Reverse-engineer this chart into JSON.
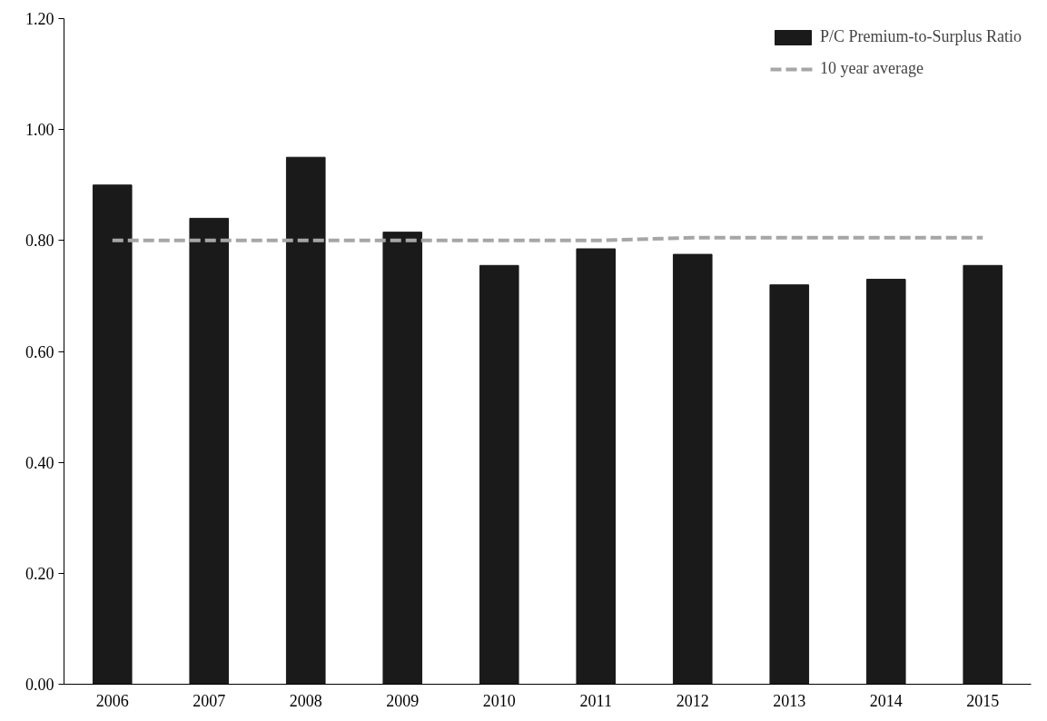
{
  "chart_data": {
    "type": "bar",
    "categories": [
      "2006",
      "2007",
      "2008",
      "2009",
      "2010",
      "2011",
      "2012",
      "2013",
      "2014",
      "2015"
    ],
    "series": [
      {
        "name": "P/C Premium-to-Surplus Ratio",
        "color": "#1a1a1a",
        "values": [
          0.9,
          0.84,
          0.95,
          0.815,
          0.755,
          0.785,
          0.775,
          0.72,
          0.73,
          0.755
        ]
      },
      {
        "name": "10 year average",
        "type": "line",
        "color": "#a6a6a6",
        "line_style": "dashed",
        "values": [
          0.8,
          0.8,
          0.8,
          0.8,
          0.8,
          0.8,
          0.805,
          0.805,
          0.805,
          0.805
        ]
      }
    ],
    "ylim": [
      0,
      1.2
    ],
    "yticks": [
      {
        "value": 0,
        "label": "0.00"
      },
      {
        "value": 0.2,
        "label": "0.20"
      },
      {
        "value": 0.4,
        "label": "0.40"
      },
      {
        "value": 0.6,
        "label": "0.60"
      },
      {
        "value": 0.8,
        "label": "0.80"
      },
      {
        "value": 1.0,
        "label": "1.00"
      },
      {
        "value": 1.2,
        "label": "1.20"
      }
    ],
    "grid": false,
    "legend": "top right"
  }
}
